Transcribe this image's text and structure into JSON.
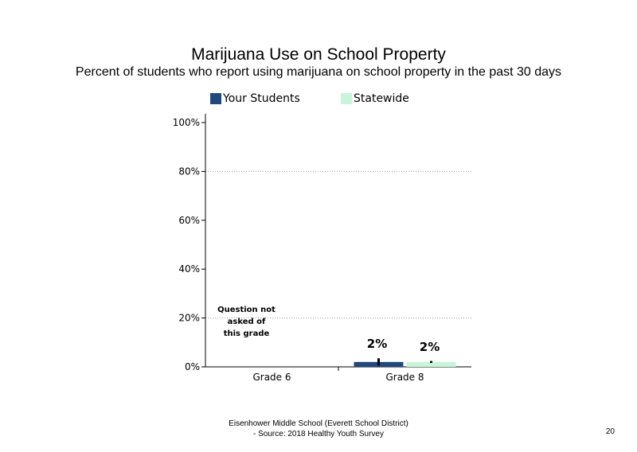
{
  "chart_data": {
    "type": "bar",
    "title": "Marijuana Use on School Property",
    "subtitle": "Percent of students who report using marijuana on school property in the past 30 days",
    "categories": [
      "Grade 6",
      "Grade 8"
    ],
    "series": [
      {
        "name": "Your Students",
        "values": [
          null,
          2
        ],
        "labels": [
          "",
          "2%"
        ],
        "error": [
          null,
          [
            0.5,
            3.5
          ]
        ],
        "color": "#1f497d"
      },
      {
        "name": "Statewide",
        "values": [
          null,
          2
        ],
        "labels": [
          "",
          "2%"
        ],
        "error": [
          null,
          [
            1.6,
            2.4
          ]
        ],
        "color": "#c6f5d9"
      }
    ],
    "yticks": [
      "0%",
      "20%",
      "40%",
      "60%",
      "80%",
      "100%"
    ],
    "ylim": [
      0,
      100
    ],
    "gridlines": [
      20,
      80
    ],
    "legend": "top",
    "annotations": [
      {
        "category": "Grade 6",
        "text": [
          "Question not",
          "asked of",
          "this grade"
        ]
      }
    ]
  },
  "footer": {
    "line1": "Eisenhower Middle School (Everett School District)",
    "line2": "- Source: 2018 Healthy  Youth Survey"
  },
  "page_number": "20"
}
